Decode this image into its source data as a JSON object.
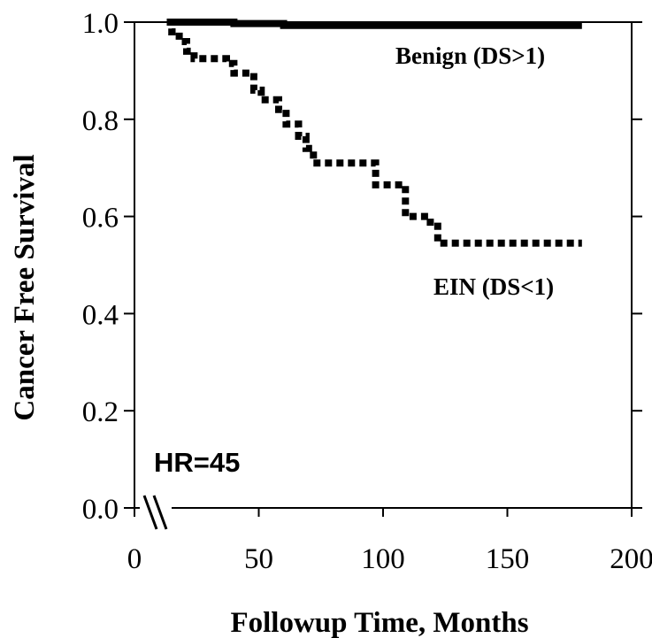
{
  "chart_data": {
    "type": "line",
    "xlabel": "Followup Time, Months",
    "ylabel": "Cancer Free Survival",
    "xlim": [
      0,
      200
    ],
    "ylim": [
      0,
      1.0
    ],
    "xticks": [
      0,
      50,
      100,
      150,
      200
    ],
    "yticks": [
      0.0,
      0.2,
      0.4,
      0.6,
      0.8,
      1.0
    ],
    "xtick_labels": [
      "0",
      "50",
      "100",
      "150",
      "200"
    ],
    "ytick_labels": [
      "0.0",
      "0.2",
      "0.4",
      "0.6",
      "0.8",
      "1.0"
    ],
    "grid": false,
    "axis_break": "x",
    "annotations": [
      {
        "text": "HR=45"
      }
    ],
    "series": [
      {
        "name": "Benign  (DS>1)",
        "style": "solid",
        "points": [
          [
            13,
            1.0
          ],
          [
            40,
            1.0
          ],
          [
            40,
            0.997
          ],
          [
            60,
            0.997
          ],
          [
            60,
            0.993
          ],
          [
            180,
            0.993
          ]
        ]
      },
      {
        "name": "EIN (DS<1)",
        "style": "dotted",
        "points": [
          [
            13,
            1.0
          ],
          [
            15,
            1.0
          ],
          [
            15,
            0.98
          ],
          [
            18,
            0.98
          ],
          [
            18,
            0.96
          ],
          [
            21,
            0.96
          ],
          [
            21,
            0.94
          ],
          [
            24,
            0.94
          ],
          [
            24,
            0.925
          ],
          [
            37,
            0.925
          ],
          [
            37,
            0.915
          ],
          [
            40,
            0.915
          ],
          [
            40,
            0.895
          ],
          [
            48,
            0.895
          ],
          [
            48,
            0.86
          ],
          [
            51,
            0.86
          ],
          [
            51,
            0.84
          ],
          [
            58,
            0.84
          ],
          [
            58,
            0.82
          ],
          [
            61,
            0.82
          ],
          [
            61,
            0.79
          ],
          [
            66,
            0.79
          ],
          [
            66,
            0.765
          ],
          [
            69,
            0.765
          ],
          [
            69,
            0.74
          ],
          [
            72,
            0.74
          ],
          [
            72,
            0.71
          ],
          [
            97,
            0.71
          ],
          [
            97,
            0.665
          ],
          [
            109,
            0.665
          ],
          [
            109,
            0.6
          ],
          [
            119,
            0.6
          ],
          [
            119,
            0.58
          ],
          [
            122,
            0.58
          ],
          [
            122,
            0.545
          ],
          [
            180,
            0.545
          ]
        ]
      }
    ]
  }
}
